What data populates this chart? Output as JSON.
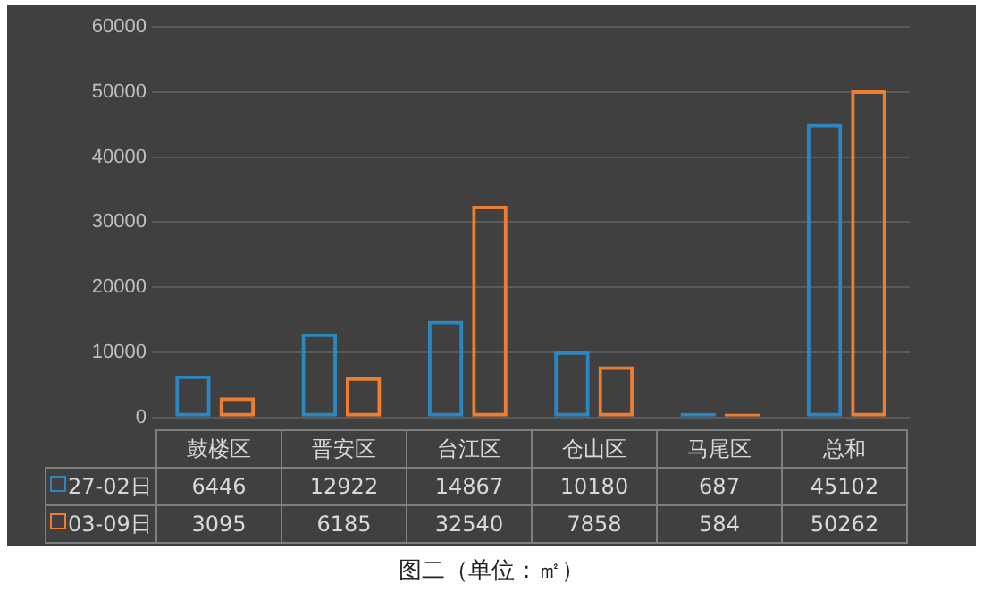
{
  "chart_data": {
    "type": "bar",
    "categories": [
      "鼓楼区",
      "晋安区",
      "台江区",
      "仓山区",
      "马尾区",
      "总和"
    ],
    "series": [
      {
        "name": "27-02日",
        "color": "#2e86c1",
        "values": [
          6446,
          12922,
          14867,
          10180,
          687,
          45102
        ]
      },
      {
        "name": "03-09日",
        "color": "#ed7d31",
        "values": [
          3095,
          6185,
          32540,
          7858,
          584,
          50262
        ]
      }
    ],
    "ylim": [
      0,
      60000
    ],
    "yticks": [
      0,
      10000,
      20000,
      30000,
      40000,
      50000,
      60000
    ],
    "grid": "y",
    "legend": "bottom",
    "data_labels": true,
    "annotations": [
      "图二（单位：㎡）"
    ]
  }
}
